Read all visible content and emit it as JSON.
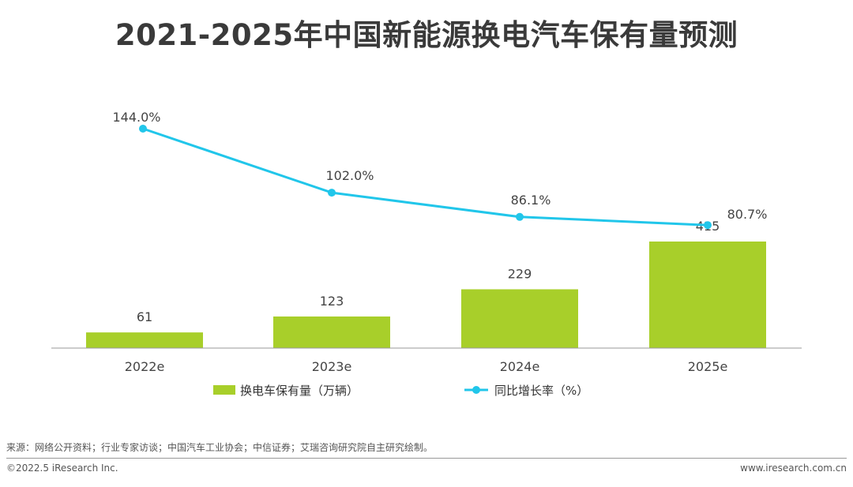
{
  "header": {
    "title": "2021-2025年中国新能源换电汽车保有量预测"
  },
  "colors": {
    "bar": "#a8cf2a",
    "line": "#21c6ea",
    "axis": "#9a9a9a",
    "title": "#3a3a3a"
  },
  "chart_data": {
    "type": "bar+line",
    "categories": [
      "2022e",
      "2023e",
      "2024e",
      "2025e"
    ],
    "series": [
      {
        "name": "换电车保有量（万辆）",
        "type": "bar",
        "values": [
          61,
          123,
          229,
          415
        ],
        "labels": [
          "61",
          "123",
          "229",
          "415"
        ]
      },
      {
        "name": "同比增长率（%）",
        "type": "line",
        "values": [
          144.0,
          102.0,
          86.1,
          80.7
        ],
        "labels": [
          "144.0%",
          "102.0%",
          "86.1%",
          "80.7%"
        ]
      }
    ],
    "bar_ylim": [
      0,
      470
    ],
    "line_ylim": [
      0,
      250
    ],
    "legend": "bottom",
    "grid": false
  },
  "footer": {
    "source": "来源：网络公开资料；行业专家访谈；中国汽车工业协会；中信证券；艾瑞咨询研究院自主研究绘制。",
    "copyright": "©2022.5 iResearch Inc.",
    "website": "www.iresearch.com.cn"
  }
}
